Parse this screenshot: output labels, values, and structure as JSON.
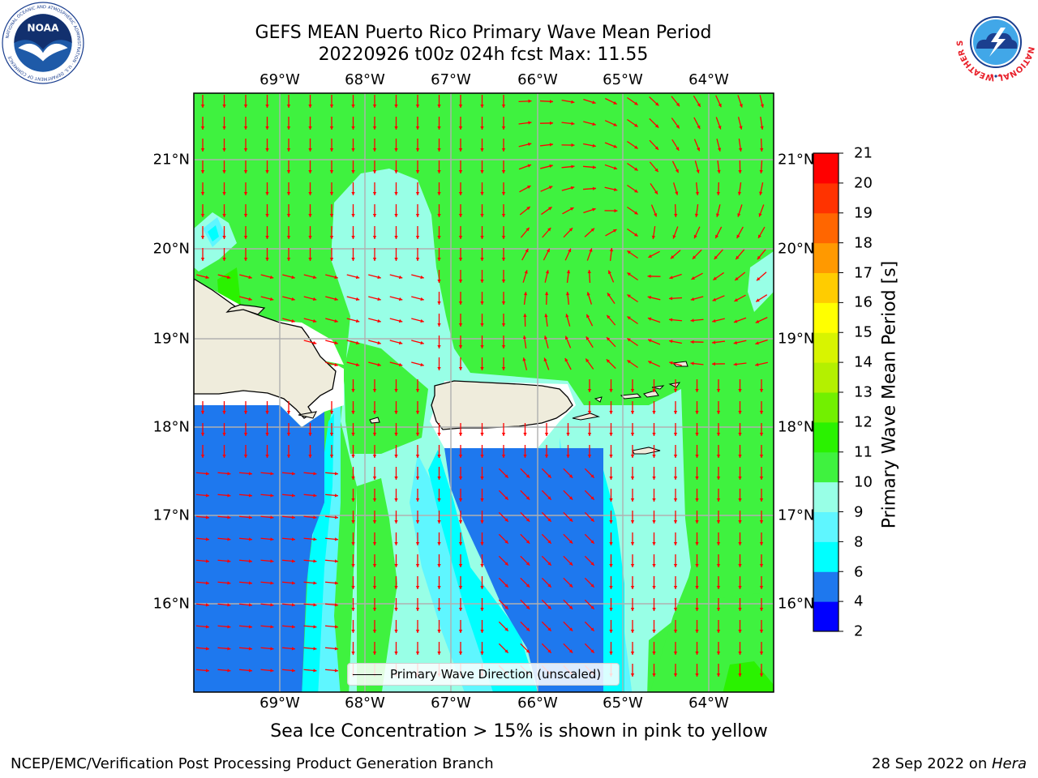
{
  "title": {
    "line1": "GEFS MEAN Puerto Rico Primary Wave Mean Period",
    "line2": "20220926 t00z 024h fcst   Max: 11.55"
  },
  "logos": {
    "left": "noaa-logo",
    "right": "nws-logo",
    "noaa_text": "NOAA",
    "noaa_ring_text": "NATIONAL OCEANIC AND ATMOSPHERIC ADMINISTRATION · U.S. DEPARTMENT OF COMMERCE",
    "nws_ring_text": "NATIONAL WEATHER SERVICE"
  },
  "map": {
    "lon_labels": [
      "69°W",
      "68°W",
      "67°W",
      "66°W",
      "65°W",
      "64°W"
    ],
    "lat_labels": [
      "21°N",
      "20°N",
      "19°N",
      "18°N",
      "17°N",
      "16°N"
    ],
    "legend_label": "Primary Wave Direction (unscaled)",
    "arrow_color": "#ff0000",
    "land_color": "#efecdc"
  },
  "colorbar": {
    "label": "Primary Wave Mean Period [s]",
    "ticks": [
      "21",
      "20",
      "19",
      "18",
      "17",
      "16",
      "15",
      "14",
      "13",
      "12",
      "11",
      "10",
      "9",
      "8",
      "6",
      "4",
      "2"
    ],
    "levels": [
      {
        "from": 2,
        "to": 4,
        "color": "#0000ff"
      },
      {
        "from": 4,
        "to": 6,
        "color": "#1e78ee"
      },
      {
        "from": 6,
        "to": 8,
        "color": "#00ffff"
      },
      {
        "from": 8,
        "to": 9,
        "color": "#5ff6ff"
      },
      {
        "from": 9,
        "to": 10,
        "color": "#98ffe6"
      },
      {
        "from": 10,
        "to": 11,
        "color": "#3ff23f"
      },
      {
        "from": 11,
        "to": 12,
        "color": "#2af200"
      },
      {
        "from": 12,
        "to": 13,
        "color": "#72f000"
      },
      {
        "from": 13,
        "to": 14,
        "color": "#b4f000"
      },
      {
        "from": 14,
        "to": 15,
        "color": "#d8f400"
      },
      {
        "from": 15,
        "to": 16,
        "color": "#ffff00"
      },
      {
        "from": 16,
        "to": 17,
        "color": "#ffcc00"
      },
      {
        "from": 17,
        "to": 18,
        "color": "#ff9900"
      },
      {
        "from": 18,
        "to": 19,
        "color": "#ff6600"
      },
      {
        "from": 19,
        "to": 20,
        "color": "#ff3300"
      },
      {
        "from": 20,
        "to": 21,
        "color": "#ff0000"
      }
    ]
  },
  "ice_note": "Sea Ice Concentration > 15% is shown in pink to yellow",
  "footer": {
    "left": "NCEP/EMC/Verification Post Processing Product Generation Branch",
    "right_date": "28 Sep 2022 on ",
    "right_host": "Hera"
  }
}
